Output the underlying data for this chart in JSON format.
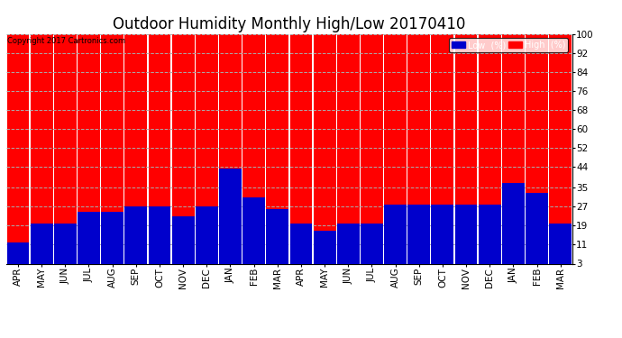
{
  "title": "Outdoor Humidity Monthly High/Low 20170410",
  "copyright": "Copyright 2017 Cartronics.com",
  "background_color": "#ffffff",
  "plot_bg_color": "#ffffff",
  "bar_high_color": "#ff0000",
  "bar_low_color": "#0000cc",
  "categories": [
    "APR",
    "MAY",
    "JUN",
    "JUL",
    "AUG",
    "SEP",
    "OCT",
    "NOV",
    "DEC",
    "JAN",
    "FEB",
    "MAR",
    "APR",
    "MAY",
    "JUN",
    "JUL",
    "AUG",
    "SEP",
    "OCT",
    "NOV",
    "DEC",
    "JAN",
    "FEB",
    "MAR"
  ],
  "high_values": [
    100,
    100,
    100,
    100,
    100,
    100,
    100,
    100,
    100,
    100,
    100,
    100,
    100,
    100,
    100,
    100,
    100,
    100,
    100,
    100,
    100,
    100,
    100,
    100
  ],
  "low_values": [
    12,
    20,
    20,
    25,
    25,
    27,
    27,
    23,
    27,
    43,
    31,
    26,
    20,
    17,
    20,
    20,
    28,
    28,
    28,
    28,
    28,
    37,
    33,
    20
  ],
  "ylim": [
    3,
    100
  ],
  "yticks": [
    3,
    11,
    19,
    27,
    35,
    44,
    52,
    60,
    68,
    76,
    84,
    92,
    100
  ],
  "grid_color": "#aaaaaa",
  "bar_width": 0.95,
  "title_fontsize": 12,
  "tick_fontsize": 7.5,
  "legend_low_label": "Low  (%)",
  "legend_high_label": "High  (%)"
}
